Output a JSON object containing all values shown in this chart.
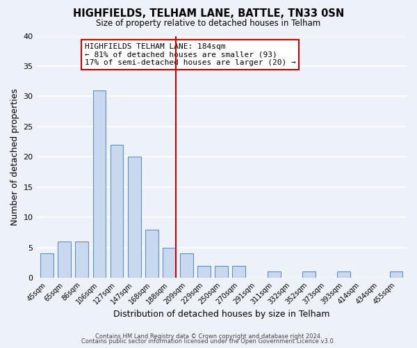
{
  "title": "HIGHFIELDS, TELHAM LANE, BATTLE, TN33 0SN",
  "subtitle": "Size of property relative to detached houses in Telham",
  "xlabel": "Distribution of detached houses by size in Telham",
  "ylabel": "Number of detached properties",
  "bar_labels": [
    "45sqm",
    "65sqm",
    "86sqm",
    "106sqm",
    "127sqm",
    "147sqm",
    "168sqm",
    "188sqm",
    "209sqm",
    "229sqm",
    "250sqm",
    "270sqm",
    "291sqm",
    "311sqm",
    "332sqm",
    "352sqm",
    "373sqm",
    "393sqm",
    "414sqm",
    "434sqm",
    "455sqm"
  ],
  "bar_values": [
    4,
    6,
    6,
    31,
    22,
    20,
    8,
    5,
    4,
    2,
    2,
    2,
    0,
    1,
    0,
    1,
    0,
    1,
    0,
    0,
    1
  ],
  "bar_color": "#c8d8ee",
  "bar_edge_color": "#6090c0",
  "vline_color": "#cc0000",
  "annotation_title": "HIGHFIELDS TELHAM LANE: 184sqm",
  "annotation_line1": "← 81% of detached houses are smaller (93)",
  "annotation_line2": "17% of semi-detached houses are larger (20) →",
  "annotation_box_color": "#ffffff",
  "annotation_box_edge": "#cc0000",
  "ylim": [
    0,
    40
  ],
  "yticks": [
    0,
    5,
    10,
    15,
    20,
    25,
    30,
    35,
    40
  ],
  "footnote1": "Contains HM Land Registry data © Crown copyright and database right 2024.",
  "footnote2": "Contains public sector information licensed under the Open Government Licence v3.0.",
  "background_color": "#edf2f9",
  "grid_color": "#ffffff"
}
